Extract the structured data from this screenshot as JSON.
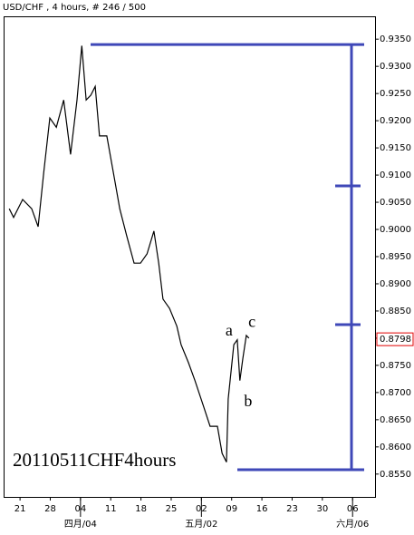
{
  "chart_data": {
    "type": "line",
    "title": "USD/CHF , 4 hours, # 246 / 500",
    "watermark": "20110511CHF4hours",
    "series": [
      {
        "name": "USD/CHF",
        "color": "#000000",
        "x": [
          -2.5,
          -1.5,
          0.6,
          2.7,
          4.2,
          5.5,
          6.9,
          8.4,
          10.1,
          11.7,
          13.2,
          14.3,
          15.3,
          16.4,
          17.4,
          18.4,
          20.1,
          21.6,
          23.1,
          24.7,
          26.4,
          27.9,
          29.4,
          31.0,
          32.1,
          33.1,
          34.6,
          36.3,
          37.3,
          39.0,
          40.5,
          42.6,
          44.0,
          45.7,
          46.8,
          47.8,
          48.2,
          49.5,
          50.3,
          50.9,
          51.6,
          52.4,
          53.0
        ],
        "values": [
          0.9038,
          0.9022,
          0.9055,
          0.9038,
          0.9005,
          0.9105,
          0.9205,
          0.9188,
          0.9238,
          0.9138,
          0.9238,
          0.9338,
          0.9238,
          0.9247,
          0.9263,
          0.9172,
          0.9172,
          0.9105,
          0.9038,
          0.8988,
          0.8938,
          0.8938,
          0.8955,
          0.8997,
          0.8938,
          0.8872,
          0.8855,
          0.8822,
          0.8788,
          0.8755,
          0.8722,
          0.8672,
          0.8638,
          0.8638,
          0.8588,
          0.8572,
          0.8688,
          0.8788,
          0.8797,
          0.8722,
          0.8763,
          0.8805,
          0.88
        ]
      }
    ],
    "last_price": {
      "value": 0.8798,
      "label": "0.8798"
    },
    "xlim": [
      -3.8,
      82.2
    ],
    "ylim": [
      0.8508,
      0.9392
    ],
    "xticks": [
      {
        "value": 0,
        "label": "21"
      },
      {
        "value": 7,
        "label": "28"
      },
      {
        "value": 14,
        "label": "04"
      },
      {
        "value": 21,
        "label": "11"
      },
      {
        "value": 28,
        "label": "18"
      },
      {
        "value": 35,
        "label": "25"
      },
      {
        "value": 42,
        "label": "02"
      },
      {
        "value": 49,
        "label": "09"
      },
      {
        "value": 56,
        "label": "16"
      },
      {
        "value": 63,
        "label": "23"
      },
      {
        "value": 70,
        "label": "30"
      },
      {
        "value": 77,
        "label": "06"
      }
    ],
    "month_ticks": [
      {
        "value": 14,
        "label": "四月/04"
      },
      {
        "value": 42,
        "label": "五月/02"
      },
      {
        "value": 77,
        "label": "六月/06"
      }
    ],
    "yticks": [
      {
        "value": 0.855,
        "label": "0.8550"
      },
      {
        "value": 0.86,
        "label": "0.8600"
      },
      {
        "value": 0.865,
        "label": "0.8650"
      },
      {
        "value": 0.87,
        "label": "0.8700"
      },
      {
        "value": 0.875,
        "label": "0.8750"
      },
      {
        "value": 0.88,
        "label": "0.8800"
      },
      {
        "value": 0.885,
        "label": "0.8850"
      },
      {
        "value": 0.89,
        "label": "0.8900"
      },
      {
        "value": 0.895,
        "label": "0.8950"
      },
      {
        "value": 0.9,
        "label": "0.9000"
      },
      {
        "value": 0.905,
        "label": "0.9050"
      },
      {
        "value": 0.91,
        "label": "0.9100"
      },
      {
        "value": 0.915,
        "label": "0.9150"
      },
      {
        "value": 0.92,
        "label": "0.9200"
      },
      {
        "value": 0.925,
        "label": "0.9250"
      },
      {
        "value": 0.93,
        "label": "0.9300"
      },
      {
        "value": 0.935,
        "label": "0.9350"
      }
    ],
    "levels": {
      "color": "#3f48b8",
      "high": 0.934,
      "low": 0.8558,
      "inner": [
        0.908,
        0.8825
      ]
    },
    "wave_labels": [
      {
        "label": "a",
        "x": 48.4,
        "value": 0.8812
      },
      {
        "label": "b",
        "x": 52.8,
        "value": 0.8682
      },
      {
        "label": "c",
        "x": 53.7,
        "value": 0.8828
      }
    ],
    "wave_color": "#5060c0"
  }
}
